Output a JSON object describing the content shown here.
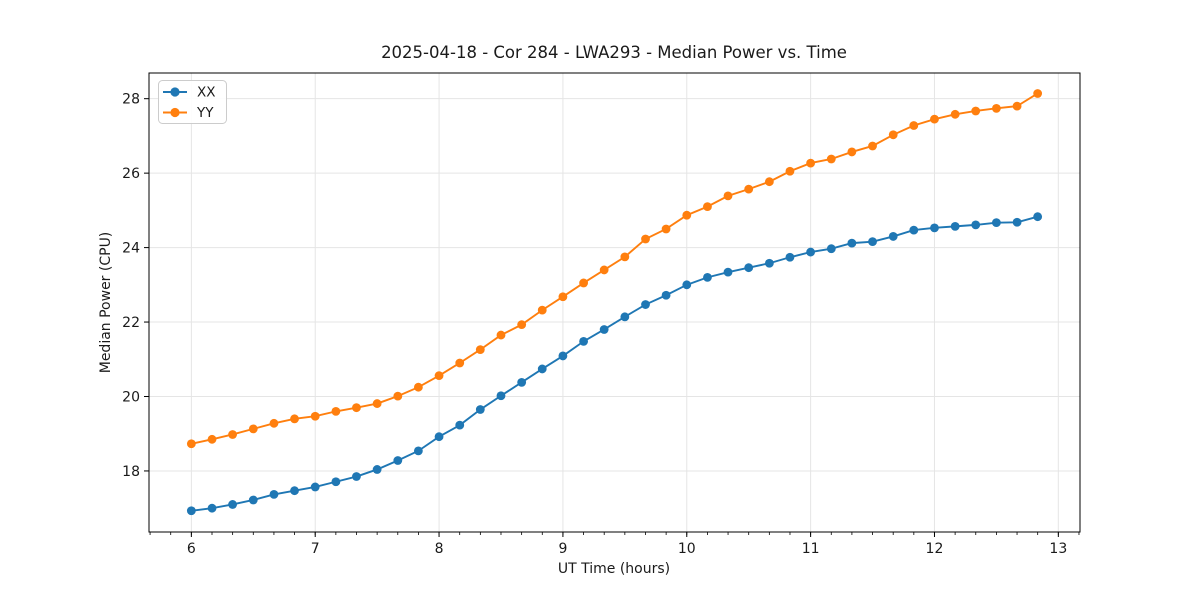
{
  "chart_data": {
    "type": "line",
    "title": "2025-04-18 - Cor 284 - LWA293 - Median Power vs. Time",
    "xlabel": "UT Time (hours)",
    "ylabel": "Median Power (CPU)",
    "xlim": [
      5.658,
      13.175
    ],
    "ylim": [
      16.36,
      28.69
    ],
    "xticks": [
      6,
      7,
      8,
      9,
      10,
      11,
      12,
      13
    ],
    "yticks": [
      18,
      20,
      22,
      24,
      26,
      28
    ],
    "x_minor_step": 0.166667,
    "grid": true,
    "grid_color": "#e5e5e5",
    "legend_position": "upper-left",
    "marker": "circle",
    "x": [
      6.0,
      6.167,
      6.333,
      6.5,
      6.667,
      6.833,
      7.0,
      7.167,
      7.333,
      7.5,
      7.667,
      7.833,
      8.0,
      8.167,
      8.333,
      8.5,
      8.667,
      8.833,
      9.0,
      9.167,
      9.333,
      9.5,
      9.667,
      9.833,
      10.0,
      10.167,
      10.333,
      10.5,
      10.667,
      10.833,
      11.0,
      11.167,
      11.333,
      11.5,
      11.667,
      11.833,
      12.0,
      12.167,
      12.333,
      12.5,
      12.667,
      12.833
    ],
    "series": [
      {
        "name": "XX",
        "color": "#1f77b4",
        "values": [
          16.93,
          17.0,
          17.1,
          17.22,
          17.37,
          17.47,
          17.57,
          17.71,
          17.85,
          18.04,
          18.28,
          18.54,
          18.92,
          19.23,
          19.65,
          20.02,
          20.38,
          20.74,
          21.09,
          21.48,
          21.8,
          22.14,
          22.47,
          22.72,
          23.0,
          23.2,
          23.34,
          23.46,
          23.58,
          23.74,
          23.88,
          23.97,
          24.12,
          24.16,
          24.3,
          24.47,
          24.53,
          24.57,
          24.61,
          24.67,
          24.68,
          24.83
        ]
      },
      {
        "name": "YY",
        "color": "#ff7f0e",
        "values": [
          18.73,
          18.85,
          18.98,
          19.13,
          19.28,
          19.4,
          19.47,
          19.6,
          19.7,
          19.81,
          20.01,
          20.25,
          20.56,
          20.9,
          21.26,
          21.65,
          21.93,
          22.32,
          22.68,
          23.05,
          23.4,
          23.75,
          24.23,
          24.5,
          24.87,
          25.1,
          25.39,
          25.57,
          25.77,
          26.05,
          26.27,
          26.38,
          26.57,
          26.73,
          27.03,
          27.28,
          27.45,
          27.58,
          27.67,
          27.74,
          27.8,
          28.14
        ]
      }
    ]
  }
}
